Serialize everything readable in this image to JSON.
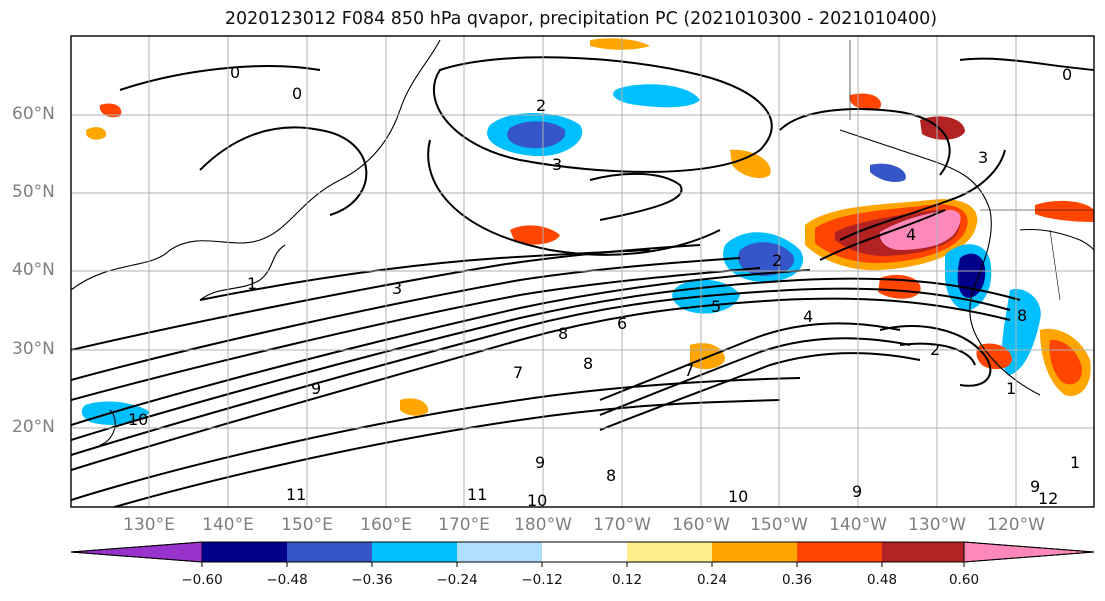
{
  "title": "2020123012 F084 850 hPa qvapor, precipitation PC (2021010300 - 2021010400)",
  "lat_labels": [
    "60°N",
    "50°N",
    "40°N",
    "30°N",
    "20°N"
  ],
  "lon_labels": [
    "130°E",
    "140°E",
    "150°E",
    "160°E",
    "170°E",
    "180°W",
    "170°W",
    "160°W",
    "150°W",
    "140°W",
    "130°W",
    "120°W"
  ],
  "colorbar": {
    "labels": [
      "-0.60",
      "-0.48",
      "-0.36",
      "-0.24",
      "-0.12",
      "0.12",
      "0.24",
      "0.36",
      "0.48",
      "0.60"
    ],
    "colors": [
      "#9932cc",
      "#00008b",
      "#3556c8",
      "#00bfff",
      "#b0e0ff",
      "#ffffff",
      "#ffec8b",
      "#ffa500",
      "#ff4500",
      "#b22222",
      "#ff88bb"
    ]
  },
  "contour_labels": [
    "0",
    "0",
    "0",
    "1",
    "1",
    "1",
    "2",
    "2",
    "2",
    "3",
    "3",
    "3",
    "4",
    "4",
    "5",
    "6",
    "7",
    "7",
    "8",
    "8",
    "8",
    "8",
    "9",
    "9",
    "9",
    "9",
    "10",
    "10",
    "10",
    "11",
    "11",
    "12"
  ]
}
